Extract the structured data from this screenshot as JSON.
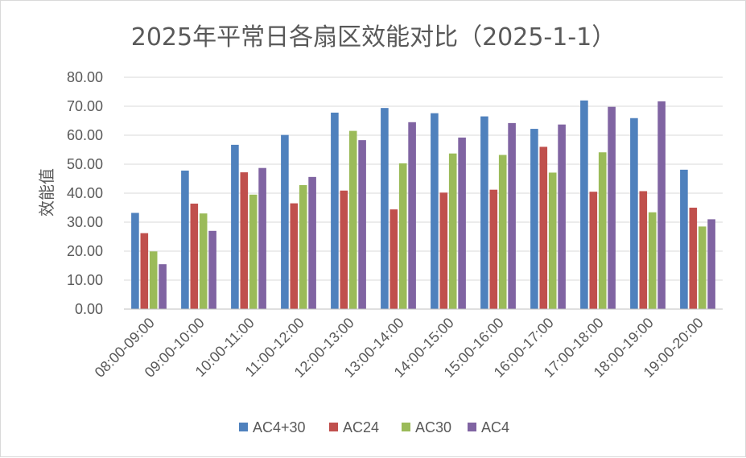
{
  "chart_data": {
    "type": "bar",
    "title": "2025年平常日各扇区效能对比（2025-1-1）",
    "xlabel": "",
    "ylabel": "效能值",
    "ylim": [
      0,
      80
    ],
    "yticks": [
      "0.00",
      "10.00",
      "20.00",
      "30.00",
      "40.00",
      "50.00",
      "60.00",
      "70.00",
      "80.00"
    ],
    "grid": true,
    "legend_position": "bottom",
    "categories": [
      "08:00-09:00",
      "09:00-10:00",
      "10:00-11:00",
      "11:00-12:00",
      "12:00-13:00",
      "13:00-14:00",
      "14:00-15:00",
      "15:00-16:00",
      "16:00-17:00",
      "17:00-18:00",
      "18:00-19:00",
      "19:00-20:00"
    ],
    "series": [
      {
        "name": "AC4+30",
        "color": "#4f81bd",
        "values": [
          33.2,
          47.8,
          56.7,
          60.1,
          67.8,
          69.4,
          67.6,
          66.5,
          62.2,
          72.0,
          65.9,
          48.1
        ]
      },
      {
        "name": "AC24",
        "color": "#c0504d",
        "values": [
          26.2,
          36.4,
          47.2,
          36.5,
          40.9,
          34.4,
          40.2,
          41.2,
          56.0,
          40.5,
          40.7,
          35.0
        ]
      },
      {
        "name": "AC30",
        "color": "#9bbb59",
        "values": [
          19.9,
          33.0,
          39.5,
          42.8,
          61.5,
          50.3,
          53.7,
          53.2,
          47.1,
          54.1,
          33.4,
          28.5
        ]
      },
      {
        "name": "AC4",
        "color": "#8064a2",
        "values": [
          15.5,
          27.0,
          48.7,
          45.6,
          58.3,
          64.5,
          59.2,
          64.2,
          63.7,
          69.8,
          71.7,
          31.0
        ]
      }
    ]
  }
}
